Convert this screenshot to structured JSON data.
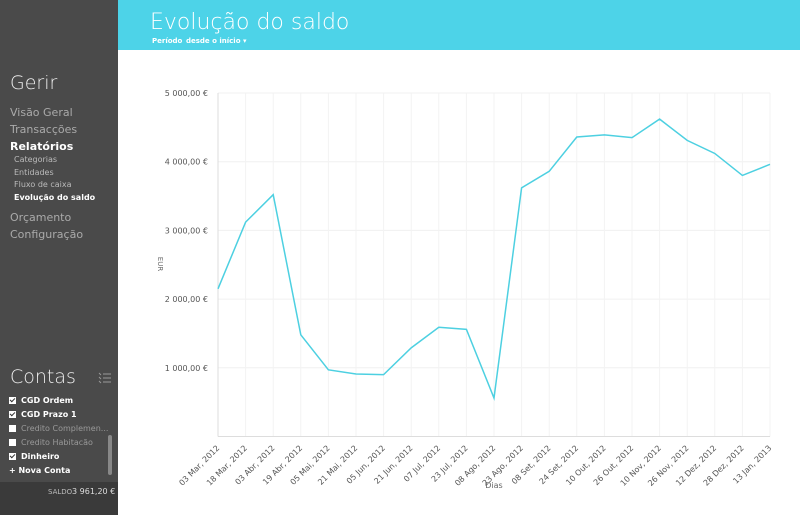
{
  "sidebar": {
    "section_title": "Gerir",
    "menu": [
      {
        "label": "Visão Geral",
        "active": false
      },
      {
        "label": "Transacções",
        "active": false
      },
      {
        "label": "Relatórios",
        "active": true,
        "children": [
          {
            "label": "Categorias",
            "active": false
          },
          {
            "label": "Entidades",
            "active": false
          },
          {
            "label": "Fluxo de caixa",
            "active": false
          },
          {
            "label": "Evolução do saldo",
            "active": true
          }
        ]
      },
      {
        "label": "Orçamento",
        "active": false
      },
      {
        "label": "Configuração",
        "active": false
      }
    ],
    "accounts_title": "Contas",
    "accounts": [
      {
        "label": "CGD Ordem",
        "checked": true
      },
      {
        "label": "CGD Prazo 1",
        "checked": true
      },
      {
        "label": "Credito Complemen...",
        "checked": false
      },
      {
        "label": "Credito Habitacão",
        "checked": false
      },
      {
        "label": "Dinheiro",
        "checked": true
      }
    ],
    "new_account": "+ Nova Conta",
    "balance_label": "SALDO",
    "balance_value": "3 961,20 €"
  },
  "header": {
    "title": "Evolução do saldo",
    "period_label": "Período",
    "period_value": "desde o início"
  },
  "chart_data": {
    "type": "line",
    "x_label": "Dias",
    "y_label": "EUR",
    "categories": [
      "03 Mar, 2012",
      "18 Mar, 2012",
      "03 Abr, 2012",
      "19 Abr, 2012",
      "05 Mai, 2012",
      "21 Mai, 2012",
      "05 Jun, 2012",
      "21 Jun, 2012",
      "07 Jul, 2012",
      "23 Jul, 2012",
      "08 Ago, 2012",
      "23 Ago, 2012",
      "08 Set, 2012",
      "24 Set, 2012",
      "10 Out, 2012",
      "26 Out, 2012",
      "10 Nov, 2012",
      "26 Nov, 2012",
      "12 Dez, 2012",
      "28 Dez, 2012",
      "13 Jan, 2013"
    ],
    "values": [
      2150,
      3120,
      3520,
      1480,
      970,
      910,
      900,
      1290,
      1590,
      1560,
      560,
      3620,
      3860,
      4360,
      4390,
      4350,
      4620,
      4310,
      4120,
      3800,
      3961.2
    ],
    "color": "#4dd0e1",
    "ylim": [
      0,
      5000
    ],
    "yticks": [
      {
        "value": 1000,
        "label": "1 000,00 €"
      },
      {
        "value": 2000,
        "label": "2 000,00 €"
      },
      {
        "value": 3000,
        "label": "3 000,00 €"
      },
      {
        "value": 4000,
        "label": "4 000,00 €"
      },
      {
        "value": 5000,
        "label": "5 000,00 €"
      }
    ],
    "grid": true
  }
}
